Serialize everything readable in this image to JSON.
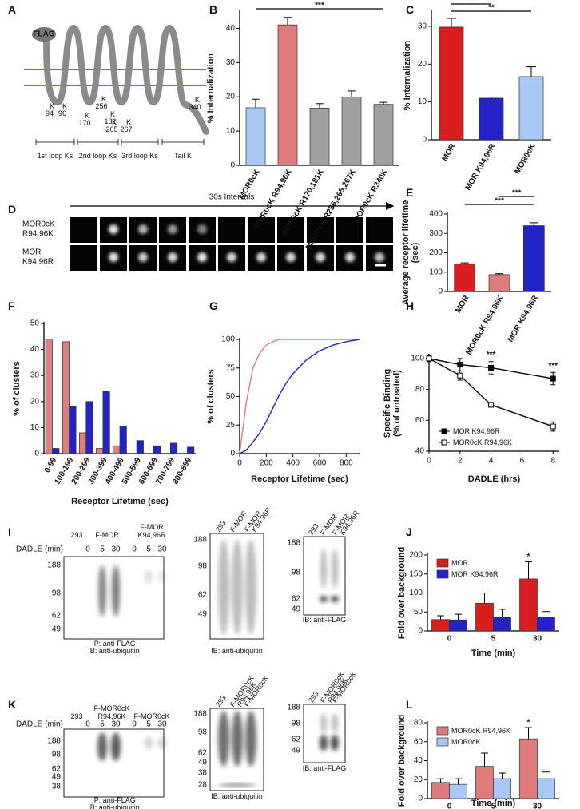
{
  "panel_a": {
    "letter": "A",
    "flag": "FLAG",
    "k_label": "K",
    "lysines": [
      94,
      96,
      170,
      181,
      256,
      265,
      267,
      340
    ],
    "loops": [
      "1st loop Ks",
      "2nd loop Ks",
      "3rd loop Ks",
      "Tail K"
    ]
  },
  "panel_d": {
    "letter": "D",
    "interval_label": "30s Intervals",
    "rows": [
      [
        "MOR0cK",
        "R94,96K"
      ],
      [
        "MOR",
        "K94,96R"
      ]
    ]
  },
  "chart_data": [
    {
      "letter": "B",
      "type": "bar",
      "categories": [
        "MOR0cK",
        "MOR0cK R94,96K",
        "MOR0cK R170,181K",
        "MOR0cK R256,265,267K",
        "MOR0cK R340K"
      ],
      "series": [
        {
          "colors": [
            "#a9c8f5",
            "#e07b7b",
            "#a0a0a0",
            "#a0a0a0",
            "#a0a0a0"
          ],
          "values": [
            16.8,
            41,
            16.7,
            19.9,
            17.8
          ],
          "errors": [
            2.5,
            2.2,
            1.3,
            1.8,
            0.6
          ]
        }
      ],
      "ylim": [
        0,
        45
      ],
      "yticks": [
        0,
        10,
        20,
        30,
        40
      ],
      "ylabel": "% Internalization",
      "annotations": [
        "***"
      ]
    },
    {
      "letter": "C",
      "type": "bar",
      "categories": [
        "MOR",
        "MOR K94,96R",
        "MOR0cK"
      ],
      "series": [
        {
          "colors": [
            "#d81e1e",
            "#2323c8",
            "#a9c8f5"
          ],
          "values": [
            29.8,
            11,
            16.7
          ],
          "errors": [
            2.3,
            0.3,
            2.6
          ]
        }
      ],
      "ylim": [
        0,
        34
      ],
      "yticks": [
        0,
        10,
        20,
        30
      ],
      "ylabel": "% Internalization",
      "annotations": [
        "***",
        "**"
      ]
    },
    {
      "letter": "E",
      "type": "bar",
      "categories": [
        "MOR",
        "MOR0cK R94,96K",
        "MOR K94,96R"
      ],
      "series": [
        {
          "colors": [
            "#d81e1e",
            "#e07b7b",
            "#2323c8"
          ],
          "values": [
            143,
            87,
            340
          ],
          "errors": [
            5,
            5,
            15
          ]
        }
      ],
      "ylim": [
        0,
        400
      ],
      "yticks": [
        0,
        100,
        200,
        300,
        400
      ],
      "ylabel": [
        "Average receptor lifetime",
        "(sec)"
      ],
      "annotations": [
        "***",
        "***"
      ]
    },
    {
      "letter": "F",
      "type": "bar",
      "categories": [
        "0-99",
        "100-199",
        "200-299",
        "300-399",
        "400-499",
        "500-599",
        "600-699",
        "700-799",
        "800-899"
      ],
      "series": [
        {
          "color": "#d98080",
          "values": [
            44,
            43,
            8,
            2,
            3,
            0,
            0,
            0,
            0
          ]
        },
        {
          "color": "#2323c8",
          "values": [
            2,
            18,
            20,
            24,
            10.5,
            5,
            3,
            4,
            2.5
          ]
        }
      ],
      "ylim": [
        0,
        50
      ],
      "yticks": [
        0,
        10,
        20,
        30,
        40,
        50
      ],
      "ylabel": "% of clusters",
      "xlabel": "Receptor Lifetime (sec)"
    },
    {
      "letter": "G",
      "type": "line",
      "x": [
        0,
        50,
        100,
        150,
        200,
        250,
        300,
        350,
        400,
        450,
        500,
        600,
        700,
        800,
        900
      ],
      "series": [
        {
          "color": "#e07b7b",
          "values": [
            0,
            45,
            75,
            88,
            95,
            98,
            100,
            100,
            100,
            100,
            100,
            100,
            100,
            100,
            100
          ]
        },
        {
          "color": "#2323c8",
          "values": [
            0,
            3,
            10,
            18,
            28,
            40,
            52,
            62,
            70,
            76,
            82,
            90,
            95,
            98,
            100
          ]
        }
      ],
      "xlim": [
        0,
        900
      ],
      "xticks": [
        0,
        200,
        400,
        600,
        800
      ],
      "ylim": [
        0,
        100
      ],
      "yticks": [
        0,
        25,
        50,
        75,
        100
      ],
      "xlabel": "Receptor Lifetime (sec)",
      "ylabel": "% of clusters"
    },
    {
      "letter": "H",
      "type": "line",
      "x": [
        0,
        2,
        4,
        8
      ],
      "series": [
        {
          "name": "MOR K94,96R",
          "color": "#000000",
          "marker_fill": "#000000",
          "values": [
            100,
            96,
            94,
            87
          ],
          "errors": [
            2,
            4,
            4,
            4
          ]
        },
        {
          "name": "MOR0cK R94,96K",
          "color": "#000000",
          "marker_fill": "#ffffff",
          "values": [
            100,
            89,
            70,
            56
          ],
          "errors": [
            2,
            3,
            1,
            3
          ]
        }
      ],
      "xlim": [
        0,
        8.4
      ],
      "xticks": [
        0,
        2,
        4,
        6,
        8
      ],
      "ylim": [
        40,
        102
      ],
      "yticks": [
        40,
        60,
        80,
        100
      ],
      "xlabel": "DADLE (hrs)",
      "ylabel": [
        "Specific Binding",
        "(% of untreated)"
      ],
      "legend": "lower left",
      "annotations": [
        "***",
        "***"
      ]
    },
    {
      "letter": "J",
      "type": "bar",
      "categories": [
        "0",
        "5",
        "30"
      ],
      "series": [
        {
          "name": "MOR",
          "color": "#d81e1e",
          "values": [
            30,
            73,
            137
          ],
          "errors": [
            10,
            27,
            45
          ]
        },
        {
          "name": "MOR K94,96R",
          "color": "#2323c8",
          "values": [
            29,
            37,
            36
          ],
          "errors": [
            15,
            20,
            15
          ]
        }
      ],
      "ylim": [
        0,
        200
      ],
      "yticks": [
        0,
        50,
        100,
        150,
        200
      ],
      "xlabel": "Time (min)",
      "ylabel": "Fold over background",
      "legend": "upper left",
      "annotations": [
        "*"
      ]
    },
    {
      "letter": "L",
      "type": "bar",
      "categories": [
        "0",
        "5",
        "30"
      ],
      "series": [
        {
          "name": "MOR0cK R94,96K",
          "color": "#e07b7b",
          "values": [
            17,
            34,
            63
          ],
          "errors": [
            4,
            14,
            12
          ]
        },
        {
          "name": "MOR0cK",
          "color": "#a9c8f5",
          "values": [
            15,
            21,
            21
          ],
          "errors": [
            6,
            6,
            7
          ]
        }
      ],
      "ylim": [
        0,
        80
      ],
      "yticks": [
        0,
        20,
        40,
        60,
        80
      ],
      "xlabel": "Time (min)",
      "ylabel": "Fold over background",
      "legend": "upper left",
      "annotations": [
        "*"
      ]
    }
  ],
  "panel_i": {
    "letter": "I",
    "ip": {
      "lanes": [
        [
          "293"
        ],
        [
          "F-MOR"
        ],
        [
          "F-MOR",
          "K94,96R"
        ]
      ],
      "treatment": "DADLE (min)",
      "times": [
        0,
        5,
        30,
        0,
        5,
        30
      ],
      "markers": [
        188,
        98,
        62,
        49
      ],
      "captions": [
        "IP: anti-FLAG",
        "IB: anti-ubiquitin"
      ]
    },
    "input": {
      "lanes": [
        [
          "293"
        ],
        [
          "F-MOR"
        ],
        [
          "F-MOR",
          "K94,96R"
        ]
      ],
      "markers": [
        188,
        98,
        62,
        49
      ],
      "captions": [
        "IB: anti-ubiquitin"
      ]
    },
    "flag": {
      "lanes": [
        [
          "293"
        ],
        [
          "F-MOR"
        ],
        [
          "F-MOR",
          "K94,96R"
        ]
      ],
      "markers": [
        188,
        98,
        62,
        49
      ],
      "captions": [
        "IB: anti-FLAG"
      ]
    }
  },
  "panel_k": {
    "letter": "K",
    "ip": {
      "lanes": [
        [
          "293"
        ],
        [
          "F-MOR0cK",
          "R94,96K"
        ],
        [
          "F-MOR0cK"
        ]
      ],
      "treatment": "DADLE (min)",
      "times": [
        0,
        5,
        30,
        0,
        5,
        30
      ],
      "markers": [
        188,
        98,
        62,
        49,
        38
      ],
      "captions": [
        "IP: anti-FLAG",
        "IB: anti-ubiquitin"
      ]
    },
    "input": {
      "lanes": [
        [
          "293"
        ],
        [
          "F-MOR0cK",
          "R94,96K"
        ],
        [
          "F-MOR0cK"
        ]
      ],
      "markers": [
        188,
        98,
        62,
        49,
        38,
        28
      ],
      "captions": [
        "IB: anti-ubiquitin"
      ]
    },
    "flag": {
      "lanes": [
        [
          "293"
        ],
        [
          "F-MOR0cK",
          "R94,96K"
        ],
        [
          "F-MOR0cK"
        ]
      ],
      "markers": [
        188,
        98,
        62,
        49
      ],
      "captions": [
        "IB: anti-FLAG"
      ]
    }
  }
}
